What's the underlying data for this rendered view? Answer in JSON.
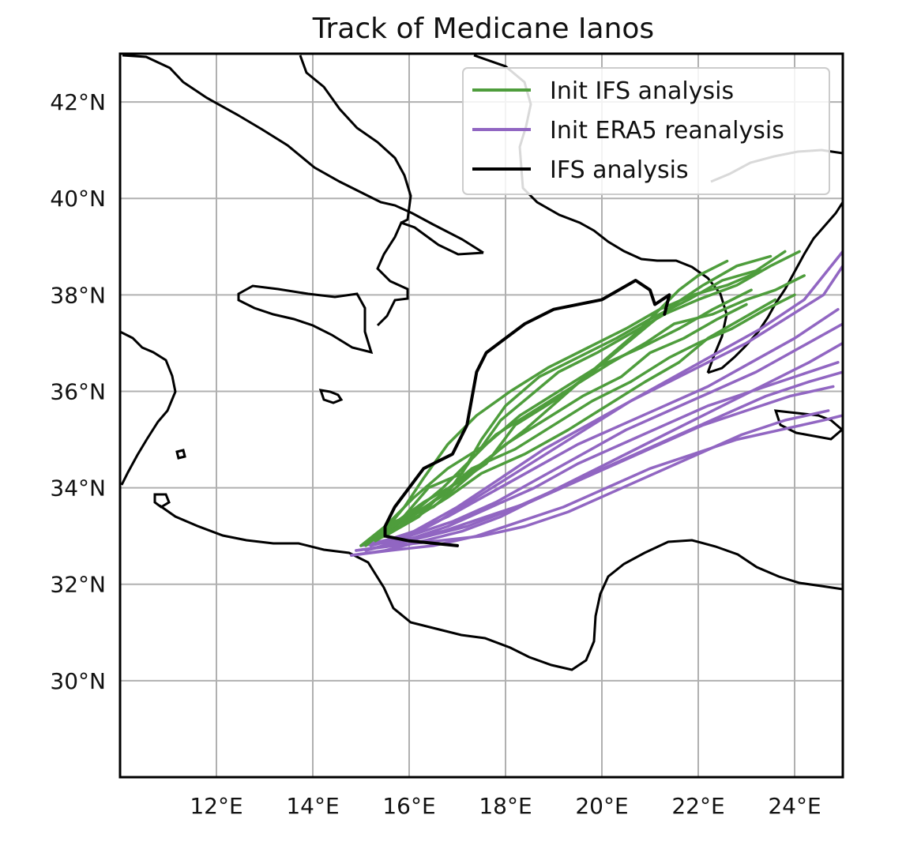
{
  "chart_data": {
    "type": "map-track",
    "title": "Track of Medicane Ianos",
    "projection": "PlateCarree",
    "xlim": [
      10,
      25
    ],
    "ylim": [
      28,
      43
    ],
    "grid": true,
    "xticks": [
      12,
      14,
      16,
      18,
      20,
      22,
      24
    ],
    "yticks": [
      30,
      32,
      34,
      36,
      38,
      40,
      42
    ],
    "xtick_labels": [
      "12°E",
      "14°E",
      "16°E",
      "18°E",
      "20°E",
      "22°E",
      "24°E"
    ],
    "ytick_labels": [
      "30°N",
      "32°N",
      "34°N",
      "36°N",
      "38°N",
      "40°N",
      "42°N"
    ],
    "legend": {
      "position": "upper-right",
      "entries": [
        {
          "label": "Init IFS analysis",
          "color": "#4e9d3c"
        },
        {
          "label": "Init ERA5 reanalysis",
          "color": "#9166c2"
        },
        {
          "label": "IFS analysis",
          "color": "#000000"
        }
      ]
    },
    "colors": {
      "ifs_ensemble": "#4e9d3c",
      "era5_ensemble": "#9166c2",
      "analysis": "#000000",
      "coast": "#000000",
      "grid": "#b0b0b0"
    },
    "series": [
      {
        "name": "IFS analysis",
        "type": "analysis",
        "lon": [
          17.0,
          16.0,
          15.5,
          15.5,
          15.7,
          16.3,
          16.9,
          17.2,
          17.4,
          17.6,
          18.4,
          19.0,
          20.0,
          20.7,
          21.0,
          21.1,
          21.4,
          21.3
        ],
        "lat": [
          32.8,
          32.9,
          33.0,
          33.2,
          33.6,
          34.4,
          34.7,
          35.3,
          36.4,
          36.8,
          37.4,
          37.7,
          37.9,
          38.3,
          38.1,
          37.8,
          38.0,
          37.6
        ]
      },
      {
        "name": "Init IFS analysis",
        "type": "ifs",
        "members": [
          {
            "lon": [
              15.2,
              15.5,
              16.2,
              16.7,
              17.5,
              18.4,
              19.2,
              20.0,
              20.7,
              21.2,
              21.6,
              22.0,
              22.6
            ],
            "lat": [
              32.9,
              33.0,
              33.4,
              33.9,
              34.5,
              35.2,
              35.9,
              36.6,
              37.2,
              37.7,
              38.1,
              38.4,
              38.7
            ]
          },
          {
            "lon": [
              15.0,
              15.6,
              16.3,
              17.0,
              17.6,
              18.2,
              19.0,
              19.8,
              20.4,
              21.0,
              21.5,
              22.1,
              22.8,
              23.5
            ],
            "lat": [
              32.8,
              33.2,
              33.7,
              34.1,
              34.5,
              35.3,
              35.8,
              36.4,
              36.9,
              37.4,
              37.8,
              38.2,
              38.6,
              38.8
            ]
          },
          {
            "lon": [
              15.4,
              16.0,
              16.8,
              17.3,
              17.8,
              18.6,
              19.4,
              20.2,
              20.9,
              21.5,
              22.3,
              23.0,
              23.6,
              24.2
            ],
            "lat": [
              33.0,
              33.4,
              33.9,
              34.6,
              35.1,
              35.6,
              36.1,
              36.6,
              37.0,
              37.4,
              37.6,
              37.9,
              38.1,
              38.4
            ]
          },
          {
            "lon": [
              15.3,
              15.8,
              16.4,
              17.1,
              17.5,
              18.0,
              18.7,
              19.5,
              20.3,
              21.0,
              21.8,
              22.5,
              23.2,
              23.8
            ],
            "lat": [
              32.9,
              33.3,
              34.0,
              34.3,
              35.0,
              35.7,
              36.3,
              36.7,
              37.1,
              37.5,
              37.9,
              38.3,
              38.5,
              38.9
            ]
          },
          {
            "lon": [
              15.1,
              15.7,
              16.5,
              17.2,
              18.0,
              18.8,
              19.6,
              20.4,
              21.0,
              21.7,
              22.4,
              23.0
            ],
            "lat": [
              32.8,
              33.3,
              33.6,
              34.2,
              34.9,
              35.4,
              35.9,
              36.3,
              36.8,
              37.1,
              37.5,
              37.8
            ]
          },
          {
            "lon": [
              15.4,
              15.9,
              16.3,
              16.8,
              17.4,
              18.1,
              18.9,
              19.7,
              20.5,
              21.2,
              21.9,
              22.6,
              23.3
            ],
            "lat": [
              33.0,
              33.6,
              34.2,
              34.9,
              35.5,
              36.0,
              36.5,
              36.9,
              37.3,
              37.7,
              38.0,
              38.2,
              38.5
            ]
          },
          {
            "lon": [
              15.2,
              15.8,
              16.6,
              17.3,
              18.2,
              19.0,
              19.8,
              20.6,
              21.4,
              22.0,
              22.7,
              23.4,
              24.0
            ],
            "lat": [
              32.9,
              33.2,
              33.8,
              34.4,
              34.8,
              35.3,
              35.8,
              36.2,
              36.7,
              37.0,
              37.3,
              37.7,
              38.0
            ]
          },
          {
            "lon": [
              15.5,
              16.1,
              16.7,
              17.4,
              17.9,
              18.5,
              19.1,
              19.9,
              20.6,
              21.3,
              22.0,
              22.8,
              23.5,
              24.1
            ],
            "lat": [
              33.1,
              33.5,
              34.0,
              34.7,
              35.4,
              35.9,
              36.4,
              36.8,
              37.2,
              37.6,
              37.9,
              38.2,
              38.6,
              38.9
            ]
          },
          {
            "lon": [
              15.0,
              15.5,
              16.1,
              16.8,
              17.6,
              18.3,
              19.1,
              19.9,
              20.8,
              21.6,
              22.3,
              23.1
            ],
            "lat": [
              32.8,
              33.2,
              33.8,
              34.4,
              34.9,
              35.5,
              36.0,
              36.5,
              36.9,
              37.3,
              37.7,
              38.1
            ]
          },
          {
            "lon": [
              15.3,
              16.0,
              16.8,
              17.5,
              18.4,
              19.3,
              20.1,
              20.9,
              21.6,
              22.2,
              22.9,
              23.6
            ],
            "lat": [
              32.9,
              33.3,
              33.8,
              34.3,
              34.7,
              35.2,
              35.7,
              36.2,
              36.6,
              37.1,
              37.5,
              37.9
            ]
          }
        ]
      },
      {
        "name": "Init ERA5 reanalysis",
        "type": "era5",
        "members": [
          {
            "lon": [
              14.9,
              15.6,
              16.4,
              17.2,
              18.0,
              18.9,
              19.8,
              20.7,
              21.6,
              22.5,
              23.4,
              24.3,
              25.0
            ],
            "lat": [
              32.7,
              32.8,
              33.0,
              33.2,
              33.5,
              33.9,
              34.3,
              34.7,
              35.1,
              35.5,
              35.9,
              36.2,
              36.4
            ]
          },
          {
            "lon": [
              15.0,
              15.8,
              16.7,
              17.6,
              18.5,
              19.4,
              20.3,
              21.2,
              22.1,
              23.0,
              23.9,
              24.8
            ],
            "lat": [
              32.8,
              32.9,
              33.1,
              33.4,
              33.7,
              34.1,
              34.5,
              34.9,
              35.3,
              35.6,
              35.9,
              36.1
            ]
          },
          {
            "lon": [
              15.1,
              15.9,
              16.8,
              17.7,
              18.6,
              19.5,
              20.4,
              21.3,
              22.2,
              23.1,
              24.0,
              24.9
            ],
            "lat": [
              32.7,
              32.9,
              33.2,
              33.6,
              34.0,
              34.5,
              34.9,
              35.3,
              35.7,
              36.0,
              36.3,
              36.6
            ]
          },
          {
            "lon": [
              14.8,
              15.5,
              16.3,
              17.1,
              17.9,
              18.7,
              19.5,
              20.3,
              21.1,
              21.9,
              22.7,
              23.5,
              24.3,
              25.0
            ],
            "lat": [
              32.6,
              32.7,
              32.9,
              33.1,
              33.4,
              33.8,
              34.2,
              34.6,
              35.0,
              35.4,
              35.8,
              36.2,
              36.6,
              37.0
            ]
          },
          {
            "lon": [
              15.2,
              16.0,
              16.9,
              17.8,
              18.7,
              19.6,
              20.5,
              21.4,
              22.3,
              23.2,
              24.1,
              25.0
            ],
            "lat": [
              32.8,
              33.0,
              33.3,
              33.7,
              34.2,
              34.7,
              35.2,
              35.6,
              36.0,
              36.4,
              36.9,
              37.4
            ]
          },
          {
            "lon": [
              14.9,
              15.7,
              16.6,
              17.5,
              18.4,
              19.3,
              20.2,
              21.1,
              22.0,
              22.9,
              23.8,
              24.7
            ],
            "lat": [
              32.7,
              32.8,
              32.9,
              33.0,
              33.2,
              33.5,
              33.9,
              34.3,
              34.7,
              35.1,
              35.4,
              35.6
            ]
          },
          {
            "lon": [
              15.0,
              15.9,
              16.8,
              17.7,
              18.6,
              19.5,
              20.4,
              21.3,
              22.2,
              23.1,
              24.0,
              24.9
            ],
            "lat": [
              32.8,
              33.0,
              33.4,
              33.9,
              34.4,
              34.9,
              35.3,
              35.7,
              36.1,
              36.6,
              37.1,
              37.7
            ]
          },
          {
            "lon": [
              15.1,
              15.8,
              16.6,
              17.4,
              18.2,
              19.0,
              19.8,
              20.6,
              21.4,
              22.2,
              23.0,
              23.8,
              24.6,
              25.0
            ],
            "lat": [
              32.7,
              32.9,
              33.3,
              33.8,
              34.3,
              34.8,
              35.3,
              35.8,
              36.2,
              36.6,
              37.0,
              37.5,
              38.0,
              38.6
            ]
          },
          {
            "lon": [
              14.8,
              15.6,
              16.5,
              17.4,
              18.3,
              19.2,
              20.1,
              21.0,
              21.9,
              22.8,
              23.7,
              24.6,
              25.0
            ],
            "lat": [
              32.6,
              32.7,
              32.8,
              33.0,
              33.3,
              33.6,
              34.0,
              34.4,
              34.7,
              35.0,
              35.2,
              35.4,
              35.5
            ]
          },
          {
            "lon": [
              15.2,
              16.1,
              17.0,
              17.9,
              18.8,
              19.7,
              20.6,
              21.5,
              22.4,
              23.3,
              24.2,
              25.0
            ],
            "lat": [
              32.8,
              33.1,
              33.6,
              34.2,
              34.8,
              35.3,
              35.8,
              36.3,
              36.8,
              37.3,
              37.9,
              38.9
            ]
          }
        ]
      }
    ]
  }
}
